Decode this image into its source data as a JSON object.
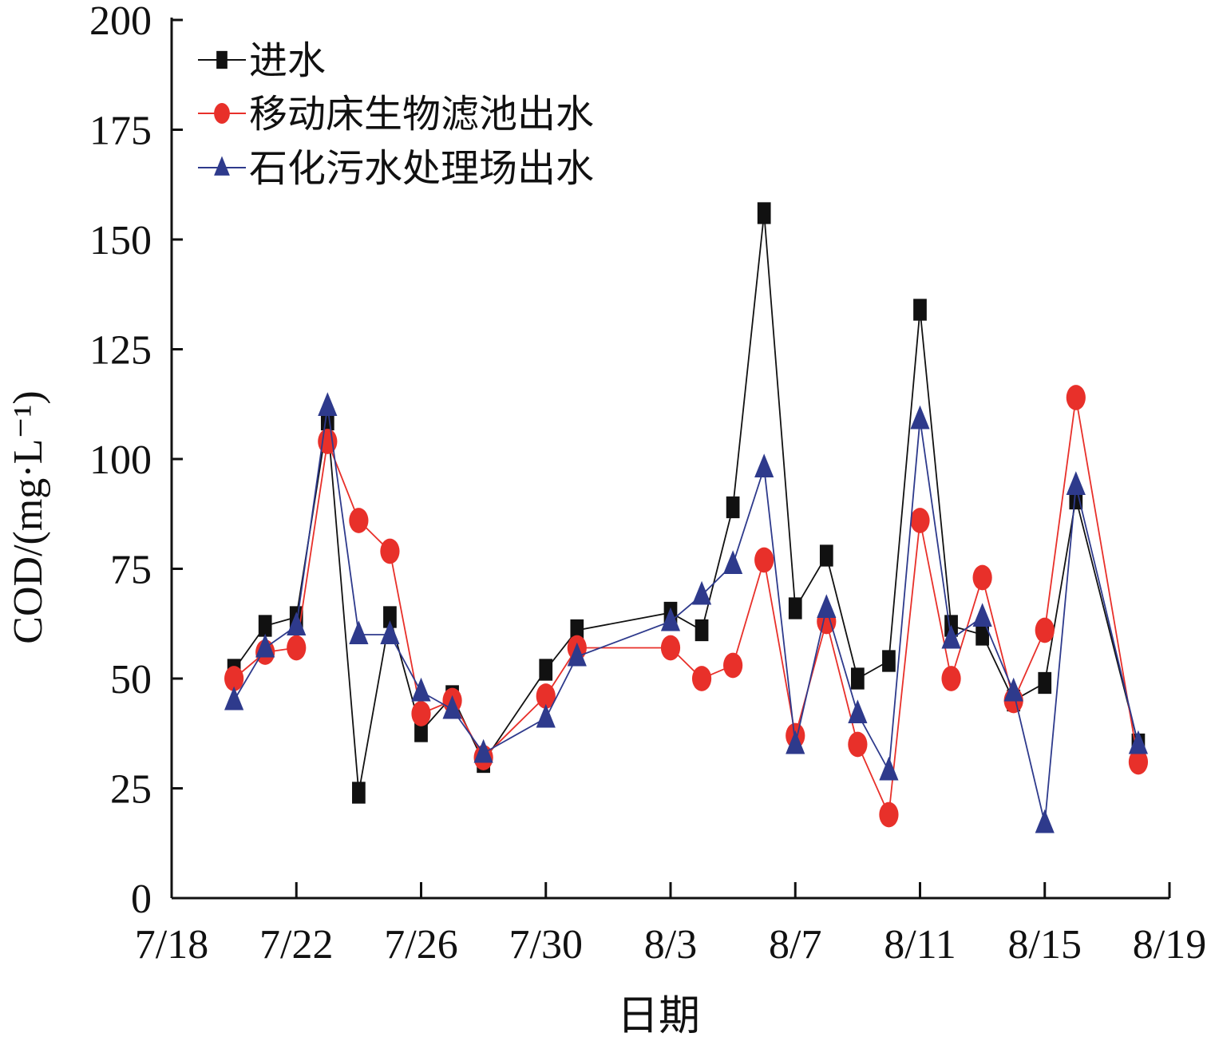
{
  "chart_data": {
    "type": "line",
    "xlabel": "日期",
    "ylabel": "COD/(mg·L⁻¹)",
    "x_ticks": [
      "7/18",
      "7/22",
      "7/26",
      "7/30",
      "8/3",
      "8/7",
      "8/11",
      "8/15",
      "8/19"
    ],
    "y_ticks": [
      "0",
      "25",
      "50",
      "75",
      "100",
      "125",
      "150",
      "175",
      "200"
    ],
    "xlim": [
      "7/18",
      "8/19"
    ],
    "ylim": [
      0,
      200
    ],
    "grid": false,
    "legend_position": "top-left",
    "series": [
      {
        "name": "进水",
        "color": "#111111",
        "marker": "square",
        "points": [
          [
            "7/20",
            52
          ],
          [
            "7/21",
            62
          ],
          [
            "7/22",
            64
          ],
          [
            "7/23",
            109
          ],
          [
            "7/24",
            24
          ],
          [
            "7/25",
            64
          ],
          [
            "7/26",
            38
          ],
          [
            "7/27",
            46
          ],
          [
            "7/28",
            31
          ],
          [
            "7/30",
            52
          ],
          [
            "7/31",
            61
          ],
          [
            "8/3",
            65
          ],
          [
            "8/4",
            61
          ],
          [
            "8/5",
            89
          ],
          [
            "8/6",
            156
          ],
          [
            "8/7",
            66
          ],
          [
            "8/8",
            78
          ],
          [
            "8/9",
            50
          ],
          [
            "8/10",
            54
          ],
          [
            "8/11",
            134
          ],
          [
            "8/12",
            62
          ],
          [
            "8/13",
            60
          ],
          [
            "8/14",
            45
          ],
          [
            "8/15",
            49
          ],
          [
            "8/16",
            91
          ],
          [
            "8/18",
            35
          ]
        ]
      },
      {
        "name": "移动床生物滤池出水",
        "color": "#e8302a",
        "marker": "circle",
        "points": [
          [
            "7/20",
            50
          ],
          [
            "7/21",
            56
          ],
          [
            "7/22",
            57
          ],
          [
            "7/23",
            104
          ],
          [
            "7/24",
            86
          ],
          [
            "7/25",
            79
          ],
          [
            "7/26",
            42
          ],
          [
            "7/27",
            45
          ],
          [
            "7/28",
            32
          ],
          [
            "7/30",
            46
          ],
          [
            "7/31",
            57
          ],
          [
            "8/3",
            57
          ],
          [
            "8/4",
            50
          ],
          [
            "8/5",
            53
          ],
          [
            "8/6",
            77
          ],
          [
            "8/7",
            37
          ],
          [
            "8/8",
            63
          ],
          [
            "8/9",
            35
          ],
          [
            "8/10",
            19
          ],
          [
            "8/11",
            86
          ],
          [
            "8/12",
            50
          ],
          [
            "8/13",
            73
          ],
          [
            "8/14",
            45
          ],
          [
            "8/15",
            61
          ],
          [
            "8/16",
            114
          ],
          [
            "8/18",
            31
          ]
        ]
      },
      {
        "name": "石化污水处理场出水",
        "color": "#2e3a8c",
        "marker": "triangle",
        "points": [
          [
            "7/20",
            45
          ],
          [
            "7/21",
            57
          ],
          [
            "7/22",
            62
          ],
          [
            "7/23",
            112
          ],
          [
            "7/24",
            60
          ],
          [
            "7/25",
            60
          ],
          [
            "7/26",
            47
          ],
          [
            "7/27",
            43
          ],
          [
            "7/28",
            33
          ],
          [
            "7/30",
            41
          ],
          [
            "7/31",
            55
          ],
          [
            "8/3",
            63
          ],
          [
            "8/4",
            69
          ],
          [
            "8/5",
            76
          ],
          [
            "8/6",
            98
          ],
          [
            "8/7",
            35
          ],
          [
            "8/8",
            66
          ],
          [
            "8/9",
            42
          ],
          [
            "8/10",
            29
          ],
          [
            "8/11",
            109
          ],
          [
            "8/12",
            59
          ],
          [
            "8/13",
            64
          ],
          [
            "8/14",
            47
          ],
          [
            "8/15",
            17
          ],
          [
            "8/16",
            94
          ],
          [
            "8/18",
            35
          ]
        ]
      }
    ]
  }
}
